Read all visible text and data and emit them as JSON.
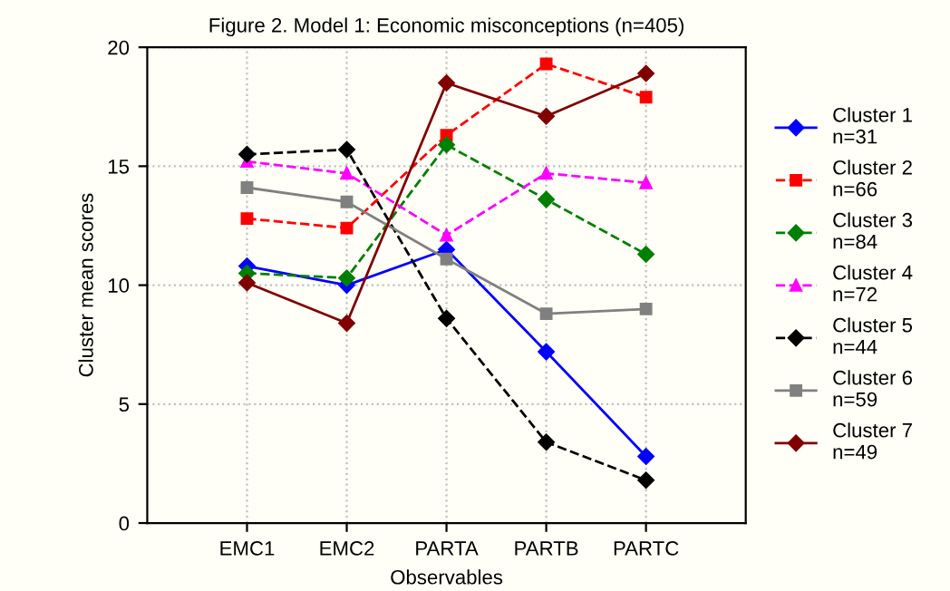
{
  "chart_data": {
    "type": "line",
    "title": "Figure 2. Model 1: Economic misconceptions (n=405)",
    "xlabel": "Observables",
    "ylabel": "Cluster mean scores",
    "categories": [
      "EMC1",
      "EMC2",
      "PARTA",
      "PARTB",
      "PARTC"
    ],
    "series": [
      {
        "name": "Cluster 1\nn=31",
        "color": "#0000ff",
        "marker": "diamond",
        "line_style": "solid",
        "values": [
          10.8,
          10.0,
          11.5,
          7.2,
          2.8
        ]
      },
      {
        "name": "Cluster 2\nn=66",
        "color": "#ff0000",
        "marker": "square",
        "line_style": "dashed",
        "values": [
          12.8,
          12.4,
          16.3,
          19.3,
          17.9
        ]
      },
      {
        "name": "Cluster 3\nn=84",
        "color": "#008000",
        "marker": "diamond",
        "line_style": "dashed",
        "values": [
          10.5,
          10.3,
          15.9,
          13.6,
          11.3
        ]
      },
      {
        "name": "Cluster 4\nn=72",
        "color": "#ff00ff",
        "marker": "triangle",
        "line_style": "dashed",
        "values": [
          15.2,
          14.7,
          12.1,
          14.7,
          14.3
        ]
      },
      {
        "name": "Cluster 5\nn=44",
        "color": "#000000",
        "marker": "diamond",
        "line_style": "dashed",
        "values": [
          15.5,
          15.7,
          8.6,
          3.4,
          1.8
        ]
      },
      {
        "name": "Cluster 6\nn=59",
        "color": "#808080",
        "marker": "square",
        "line_style": "solid",
        "values": [
          14.1,
          13.5,
          11.1,
          8.8,
          9.0
        ]
      },
      {
        "name": "Cluster 7\nn=49",
        "color": "#800000",
        "marker": "diamond",
        "line_style": "solid",
        "values": [
          10.1,
          8.4,
          18.5,
          17.1,
          18.9
        ]
      }
    ],
    "ylim": [
      0,
      20
    ],
    "yticks": [
      0,
      5,
      10,
      15,
      20
    ],
    "grid": true,
    "legend": "right"
  }
}
